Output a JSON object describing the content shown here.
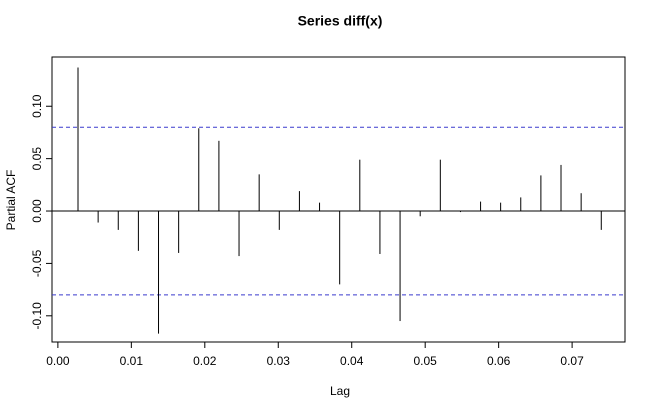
{
  "chart_data": {
    "type": "spike",
    "title": "Series  diff(x)",
    "x_label": "Lag",
    "y_label": "Partial ACF",
    "x": [
      0.00274,
      0.00548,
      0.00822,
      0.01096,
      0.0137,
      0.01644,
      0.01918,
      0.02192,
      0.02466,
      0.0274,
      0.03014,
      0.03288,
      0.03562,
      0.03836,
      0.0411,
      0.04384,
      0.04658,
      0.04932,
      0.05206,
      0.0548,
      0.05754,
      0.06027,
      0.06301,
      0.06575,
      0.06849,
      0.07123,
      0.07397
    ],
    "values": [
      0.137,
      -0.011,
      -0.018,
      -0.038,
      -0.117,
      -0.04,
      0.079,
      0.067,
      -0.043,
      0.035,
      -0.018,
      0.019,
      0.008,
      -0.07,
      0.049,
      -0.041,
      -0.105,
      -0.005,
      0.049,
      -0.001,
      0.009,
      0.008,
      0.013,
      0.034,
      0.044,
      0.017,
      -0.018
    ],
    "color": "#000000",
    "xlim": [
      -0.0008,
      0.0772
    ],
    "ylim": [
      -0.125,
      0.147
    ],
    "xticks": [
      {
        "value": 0,
        "label": "0.00"
      },
      {
        "value": 0.01,
        "label": "0.01"
      },
      {
        "value": 0.02,
        "label": "0.02"
      },
      {
        "value": 0.03,
        "label": "0.03"
      },
      {
        "value": 0.04,
        "label": "0.04"
      },
      {
        "value": 0.05,
        "label": "0.05"
      },
      {
        "value": 0.06,
        "label": "0.06"
      },
      {
        "value": 0.07,
        "label": "0.07"
      }
    ],
    "yticks": [
      {
        "value": -0.1,
        "label": "-0.10"
      },
      {
        "value": -0.05,
        "label": "-0.05"
      },
      {
        "value": 0,
        "label": "0.00"
      },
      {
        "value": 0.05,
        "label": "0.05"
      },
      {
        "value": 0.1,
        "label": "0.10"
      }
    ],
    "confidence_lines": [
      0.08,
      -0.08
    ],
    "confidence_color": "#3a3acd"
  }
}
